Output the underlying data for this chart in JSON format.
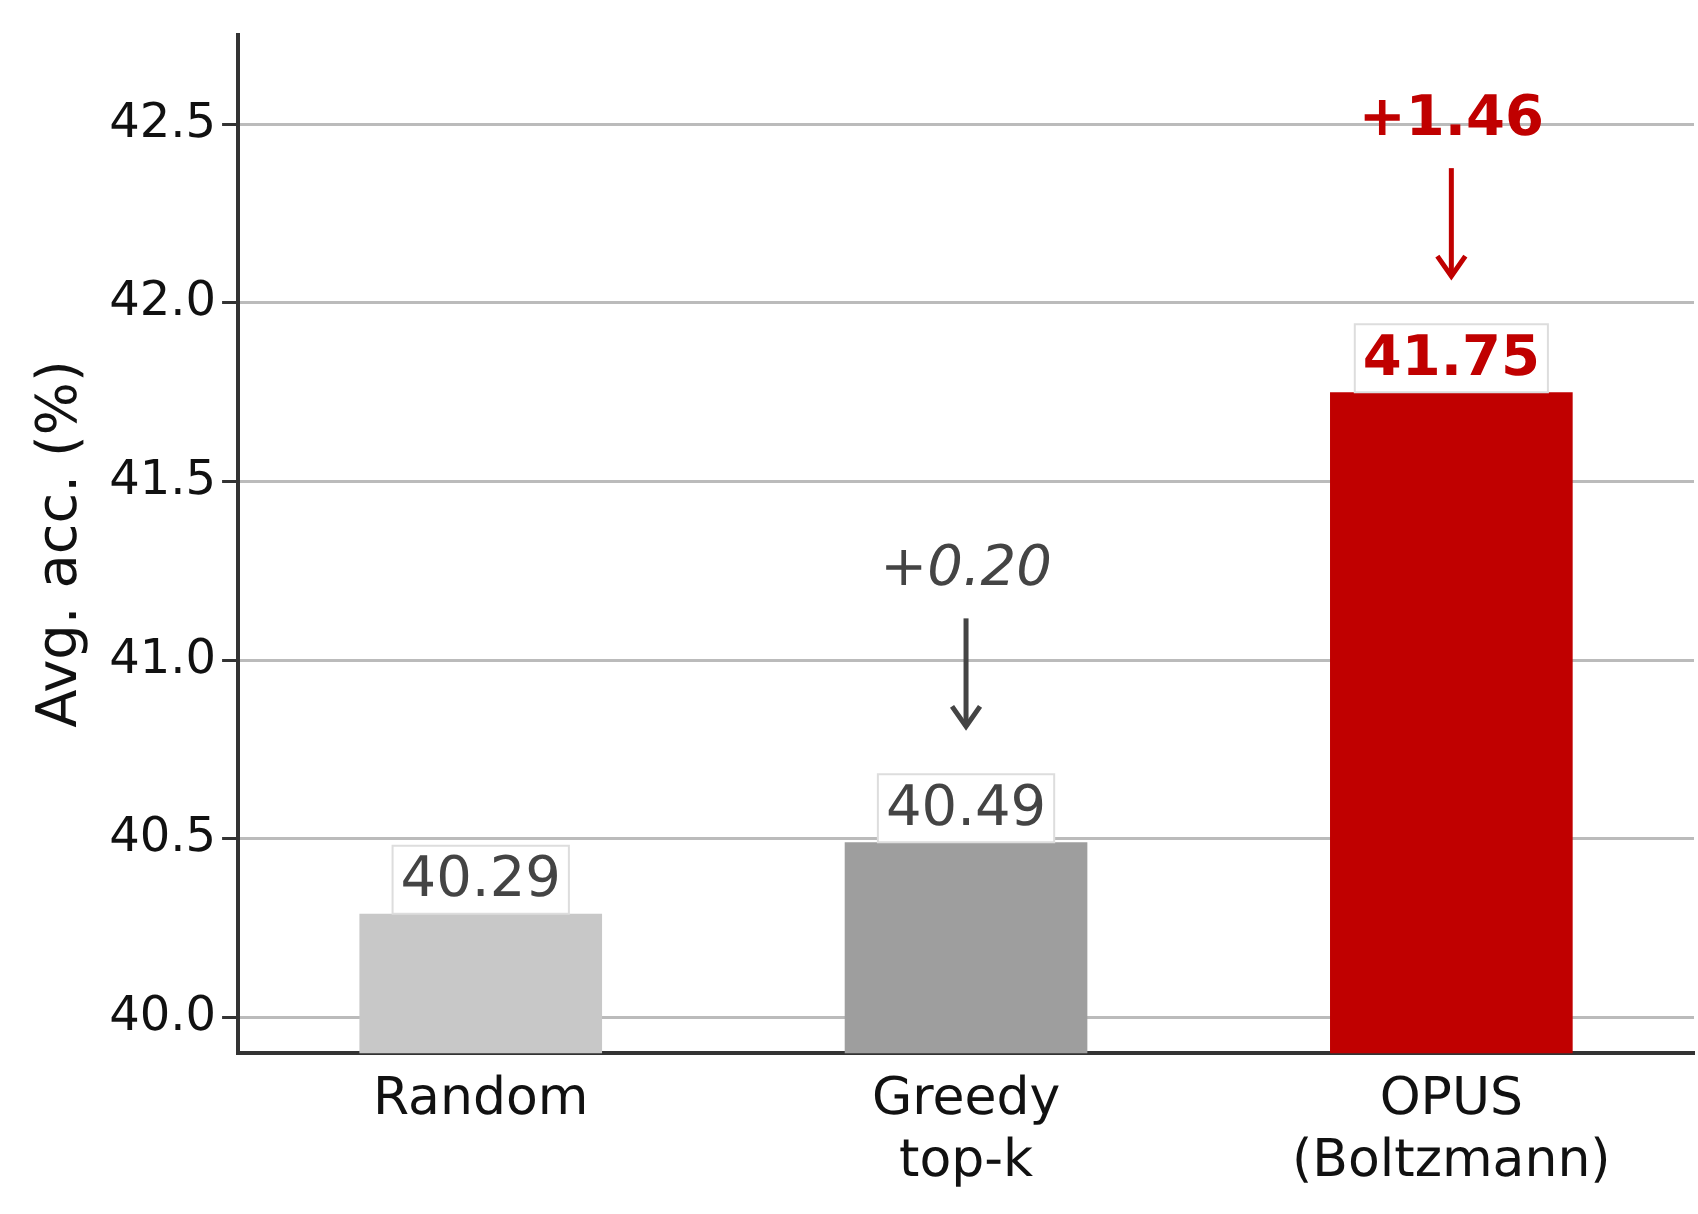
{
  "chart_data": {
    "type": "bar",
    "ylabel": "Avg. acc. (%)",
    "categories": [
      "Random",
      "Greedy\ntop-k",
      "OPUS\n(Boltzmann)"
    ],
    "values": [
      40.29,
      40.49,
      41.75
    ],
    "colors": [
      "#c8c8c8",
      "#9e9e9e",
      "#c00000"
    ],
    "ylim": [
      39.9,
      42.75
    ],
    "yticks": [
      {
        "value": 40,
        "label": "40.0"
      },
      40.5,
      {
        "value": 41,
        "label": "41.0"
      },
      41.5,
      {
        "value": 42,
        "label": "42.0"
      },
      42.5
    ],
    "grid": "y",
    "legend": false,
    "data_labels": true,
    "annotations": [
      "+0.20",
      "+1.46"
    ]
  }
}
